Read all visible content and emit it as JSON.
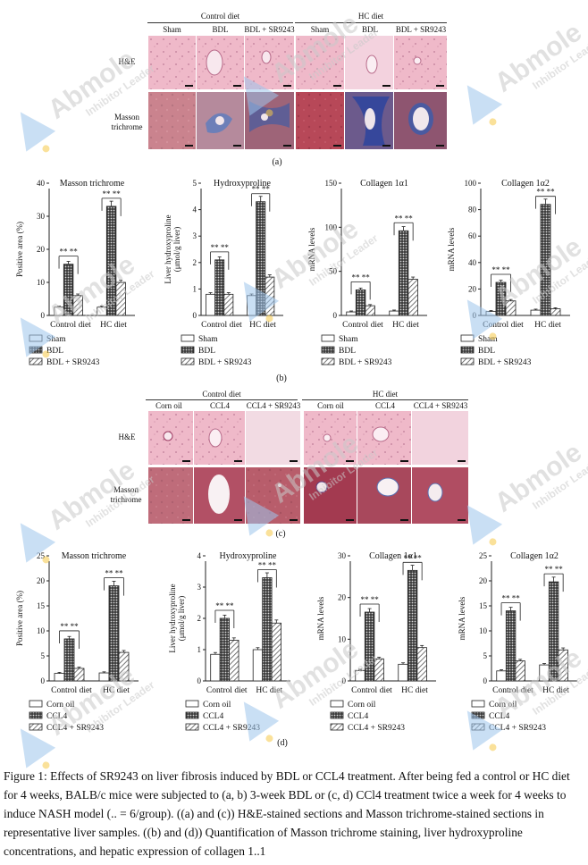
{
  "panel_a": {
    "group_headers": [
      "Control diet",
      "HC diet"
    ],
    "column_headers": [
      "Sham",
      "BDL",
      "BDL + SR9243",
      "Sham",
      "BDL",
      "BDL + SR9243"
    ],
    "row_labels": [
      "H&E",
      "Masson\ntrichrome"
    ],
    "letter": "(a)"
  },
  "panel_c": {
    "group_headers": [
      "Control diet",
      "HC diet"
    ],
    "column_headers": [
      "Corn oil",
      "CCL4",
      "CCL4 + SR9243",
      "Corn oil",
      "CCL4",
      "CCL4 + SR9243"
    ],
    "row_labels": [
      "H&E",
      "Masson\ntrichrome"
    ],
    "letter": "(c)"
  },
  "panel_b_letter": "(b)",
  "panel_d_letter": "(d)",
  "legend_b": [
    "Sham",
    "BDL",
    "BDL + SR9243"
  ],
  "legend_d": [
    "Corn oil",
    "CCL4",
    "CCL4 + SR9243"
  ],
  "significance": "** **",
  "significance_dense": "* * * *",
  "watermark": {
    "brand": "Abmole",
    "tagline": "Inhibitor Leader"
  },
  "colors": {
    "bar_outline": "#222222",
    "dot_accent": "#f7c948",
    "watermark_blue": "#9ec5ec"
  },
  "chart_data": [
    {
      "type": "bar",
      "title": "Masson trichrome",
      "ylabel": "Positive area (%)",
      "categories": [
        "Control diet",
        "HC diet"
      ],
      "ylim": [
        0,
        40
      ],
      "yticks": [
        0,
        10,
        20,
        30,
        40
      ],
      "series": [
        {
          "name": "Sham",
          "values": [
            2.5,
            2.5
          ]
        },
        {
          "name": "BDL",
          "values": [
            15.5,
            33
          ]
        },
        {
          "name": "BDL + SR9243",
          "values": [
            6,
            10
          ]
        }
      ]
    },
    {
      "type": "bar",
      "title": "Hydroxyproline",
      "ylabel": "Liver hydroxyproline\n(μmol/g liver)",
      "categories": [
        "Control diet",
        "HC diet"
      ],
      "ylim": [
        0,
        5
      ],
      "yticks": [
        0,
        1,
        2,
        3,
        4,
        5
      ],
      "series": [
        {
          "name": "Sham",
          "values": [
            0.8,
            0.75
          ]
        },
        {
          "name": "BDL",
          "values": [
            2.1,
            4.3
          ]
        },
        {
          "name": "BDL + SR9243",
          "values": [
            0.8,
            1.45
          ]
        }
      ]
    },
    {
      "type": "bar",
      "title": "Collagen 1α1",
      "ylabel": "mRNA levels",
      "categories": [
        "Control diet",
        "HC diet"
      ],
      "ylim": [
        0,
        150
      ],
      "yticks": [
        0,
        50,
        100,
        150
      ],
      "series": [
        {
          "name": "Sham",
          "values": [
            4,
            5
          ]
        },
        {
          "name": "BDL",
          "values": [
            29,
            96
          ]
        },
        {
          "name": "BDL + SR9243",
          "values": [
            11,
            41
          ]
        }
      ]
    },
    {
      "type": "bar",
      "title": "Collagen 1α2",
      "ylabel": "mRNA levels",
      "categories": [
        "Control diet",
        "HC diet"
      ],
      "ylim": [
        0,
        100
      ],
      "yticks": [
        0,
        20,
        40,
        60,
        80,
        100
      ],
      "series": [
        {
          "name": "Sham",
          "values": [
            3,
            4
          ]
        },
        {
          "name": "BDL",
          "values": [
            25,
            84
          ]
        },
        {
          "name": "BDL + SR9243",
          "values": [
            11,
            5
          ]
        }
      ]
    },
    {
      "type": "bar",
      "title": "Masson trichrome",
      "ylabel": "Positive area (%)",
      "categories": [
        "Control diet",
        "HC diet"
      ],
      "ylim": [
        0,
        25
      ],
      "yticks": [
        0,
        5,
        10,
        15,
        20,
        25
      ],
      "series": [
        {
          "name": "Corn oil",
          "values": [
            1.5,
            1.6
          ]
        },
        {
          "name": "CCL4",
          "values": [
            8.4,
            19
          ]
        },
        {
          "name": "CCL4 + SR9243",
          "values": [
            2.5,
            5.7
          ]
        }
      ]
    },
    {
      "type": "bar",
      "title": "Hydroxyproline",
      "ylabel": "Liver hydroxyproline\n(μmol/g liver)",
      "categories": [
        "Control diet",
        "HC diet"
      ],
      "ylim": [
        0,
        4
      ],
      "yticks": [
        0,
        1,
        2,
        3,
        4
      ],
      "series": [
        {
          "name": "Corn oil",
          "values": [
            0.85,
            1.0
          ]
        },
        {
          "name": "CCL4",
          "values": [
            2.0,
            3.3
          ]
        },
        {
          "name": "CCL4 + SR9243",
          "values": [
            1.3,
            1.85
          ]
        }
      ]
    },
    {
      "type": "bar",
      "title": "Collagen 1α1",
      "ylabel": "mRNA levels",
      "categories": [
        "Control diet",
        "HC diet"
      ],
      "ylim": [
        0,
        30
      ],
      "yticks": [
        0,
        10,
        20,
        30
      ],
      "series": [
        {
          "name": "Corn oil",
          "values": [
            2.5,
            4
          ]
        },
        {
          "name": "CCL4",
          "values": [
            16.5,
            26.5
          ]
        },
        {
          "name": "CCL4 + SR9243",
          "values": [
            5.3,
            8
          ]
        }
      ]
    },
    {
      "type": "bar",
      "title": "Collagen 1α2",
      "ylabel": "mRNA levels",
      "categories": [
        "Control diet",
        "HC diet"
      ],
      "ylim": [
        0,
        25
      ],
      "yticks": [
        0,
        5,
        10,
        15,
        20,
        25
      ],
      "series": [
        {
          "name": "Corn oil",
          "values": [
            2,
            3.2
          ]
        },
        {
          "name": "CCL4",
          "values": [
            14,
            19.8
          ]
        },
        {
          "name": "CCL4 + SR9243",
          "values": [
            4,
            6.2
          ]
        }
      ]
    }
  ],
  "caption": "Figure 1: Effects of SR9243 on liver fibrosis induced by BDL or CCL4 treatment. After being fed a control or HC diet for 4 weeks, BALB/c mice were subjected to (a, b) 3-week BDL or (c, d) CCl4 treatment twice a week for 4 weeks to induce NASH model (.. = 6/group). ((a) and (c)) H&E-stained sections and Masson trichrome-stained sections in representative liver samples. ((b) and (d)) Quantification of Masson trichrome staining, liver hydroxyproline concentrations, and hepatic expression of collagen 1..1"
}
